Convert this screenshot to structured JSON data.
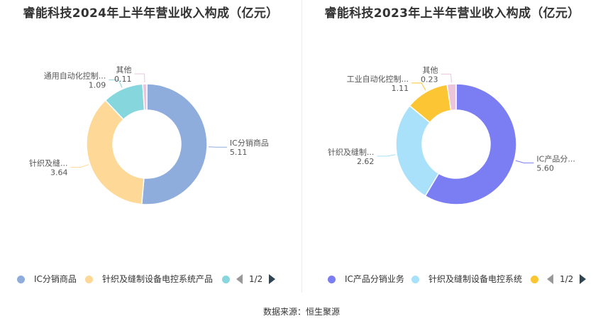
{
  "colors": {
    "ic_left": "#8eacdc",
    "knit": "#fdd896",
    "automation_left": "#86d6dd",
    "other": "#ecc4dc",
    "ic_right": "#7b7df2",
    "knit_right": "#a9e1fa",
    "automation_right": "#fbc534",
    "nav_active": "#2f4554",
    "nav_inactive": "#999999"
  },
  "charts": [
    {
      "title": "睿能科技2024年上半年营业收入构成（亿元）",
      "legend": {
        "items": [
          "IC分销商品",
          "针织及缝制设备电控系统产品",
          ""
        ],
        "page": "1/2"
      }
    },
    {
      "title": "睿能科技2023年上半年营业收入构成（亿元）",
      "legend": {
        "items": [
          "IC产品分销业务",
          "针织及缝制设备电控系统",
          ""
        ],
        "page": "1/2"
      }
    }
  ],
  "chart_data": [
    {
      "type": "pie",
      "title": "睿能科技2024年上半年营业收入构成（亿元）",
      "slices": [
        {
          "label": "IC分销商品",
          "value": 5.11,
          "value_text": "5.11",
          "color": "#8eacdc"
        },
        {
          "label": "针织及缝...",
          "value": 3.64,
          "value_text": "3.64",
          "color": "#fdd896"
        },
        {
          "label": "通用自动化控制...",
          "value": 1.09,
          "value_text": "1.09",
          "color": "#86d6dd"
        },
        {
          "label": "其他",
          "value": 0.11,
          "value_text": "0.11",
          "color": "#ecc4dc"
        }
      ]
    },
    {
      "type": "pie",
      "title": "睿能科技2023年上半年营业收入构成（亿元）",
      "slices": [
        {
          "label": "IC产品分...",
          "value": 5.6,
          "value_text": "5.60",
          "color": "#7b7df2"
        },
        {
          "label": "针织及缝制...",
          "value": 2.62,
          "value_text": "2.62",
          "color": "#a9e1fa"
        },
        {
          "label": "工业自动化控制...",
          "value": 1.11,
          "value_text": "1.11",
          "color": "#fbc534"
        },
        {
          "label": "其他",
          "value": 0.23,
          "value_text": "0.23",
          "color": "#ecc4dc"
        }
      ]
    }
  ],
  "footer": {
    "source": "数据来源：恒生聚源"
  }
}
